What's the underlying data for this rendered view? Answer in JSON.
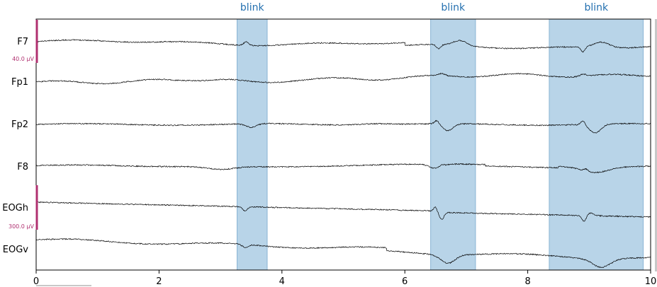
{
  "chart_data": {
    "type": "line",
    "title": "",
    "xlabel": "",
    "ylabel": "",
    "xlim": [
      0,
      10
    ],
    "x_ticks": [
      0,
      2,
      4,
      6,
      8,
      10
    ],
    "channels": [
      "F7",
      "Fp1",
      "Fp2",
      "F8",
      "EOGh",
      "EOGv"
    ],
    "annotations": [
      {
        "label": "blink",
        "start": 3.27,
        "end": 3.76
      },
      {
        "label": "blink",
        "start": 6.42,
        "end": 7.15
      },
      {
        "label": "blink",
        "start": 8.35,
        "end": 9.88
      }
    ],
    "scale_bars": [
      {
        "label": "40.0 µV",
        "group": "EEG"
      },
      {
        "label": "300.0 µV",
        "group": "EOG"
      }
    ],
    "grid": false,
    "colors": {
      "trace": "#000000",
      "annotation": "#b8d4e8",
      "annotation_edge": "#8ab4d4",
      "annotation_text": "#2470b0",
      "scale_bar": "#b03070"
    }
  }
}
